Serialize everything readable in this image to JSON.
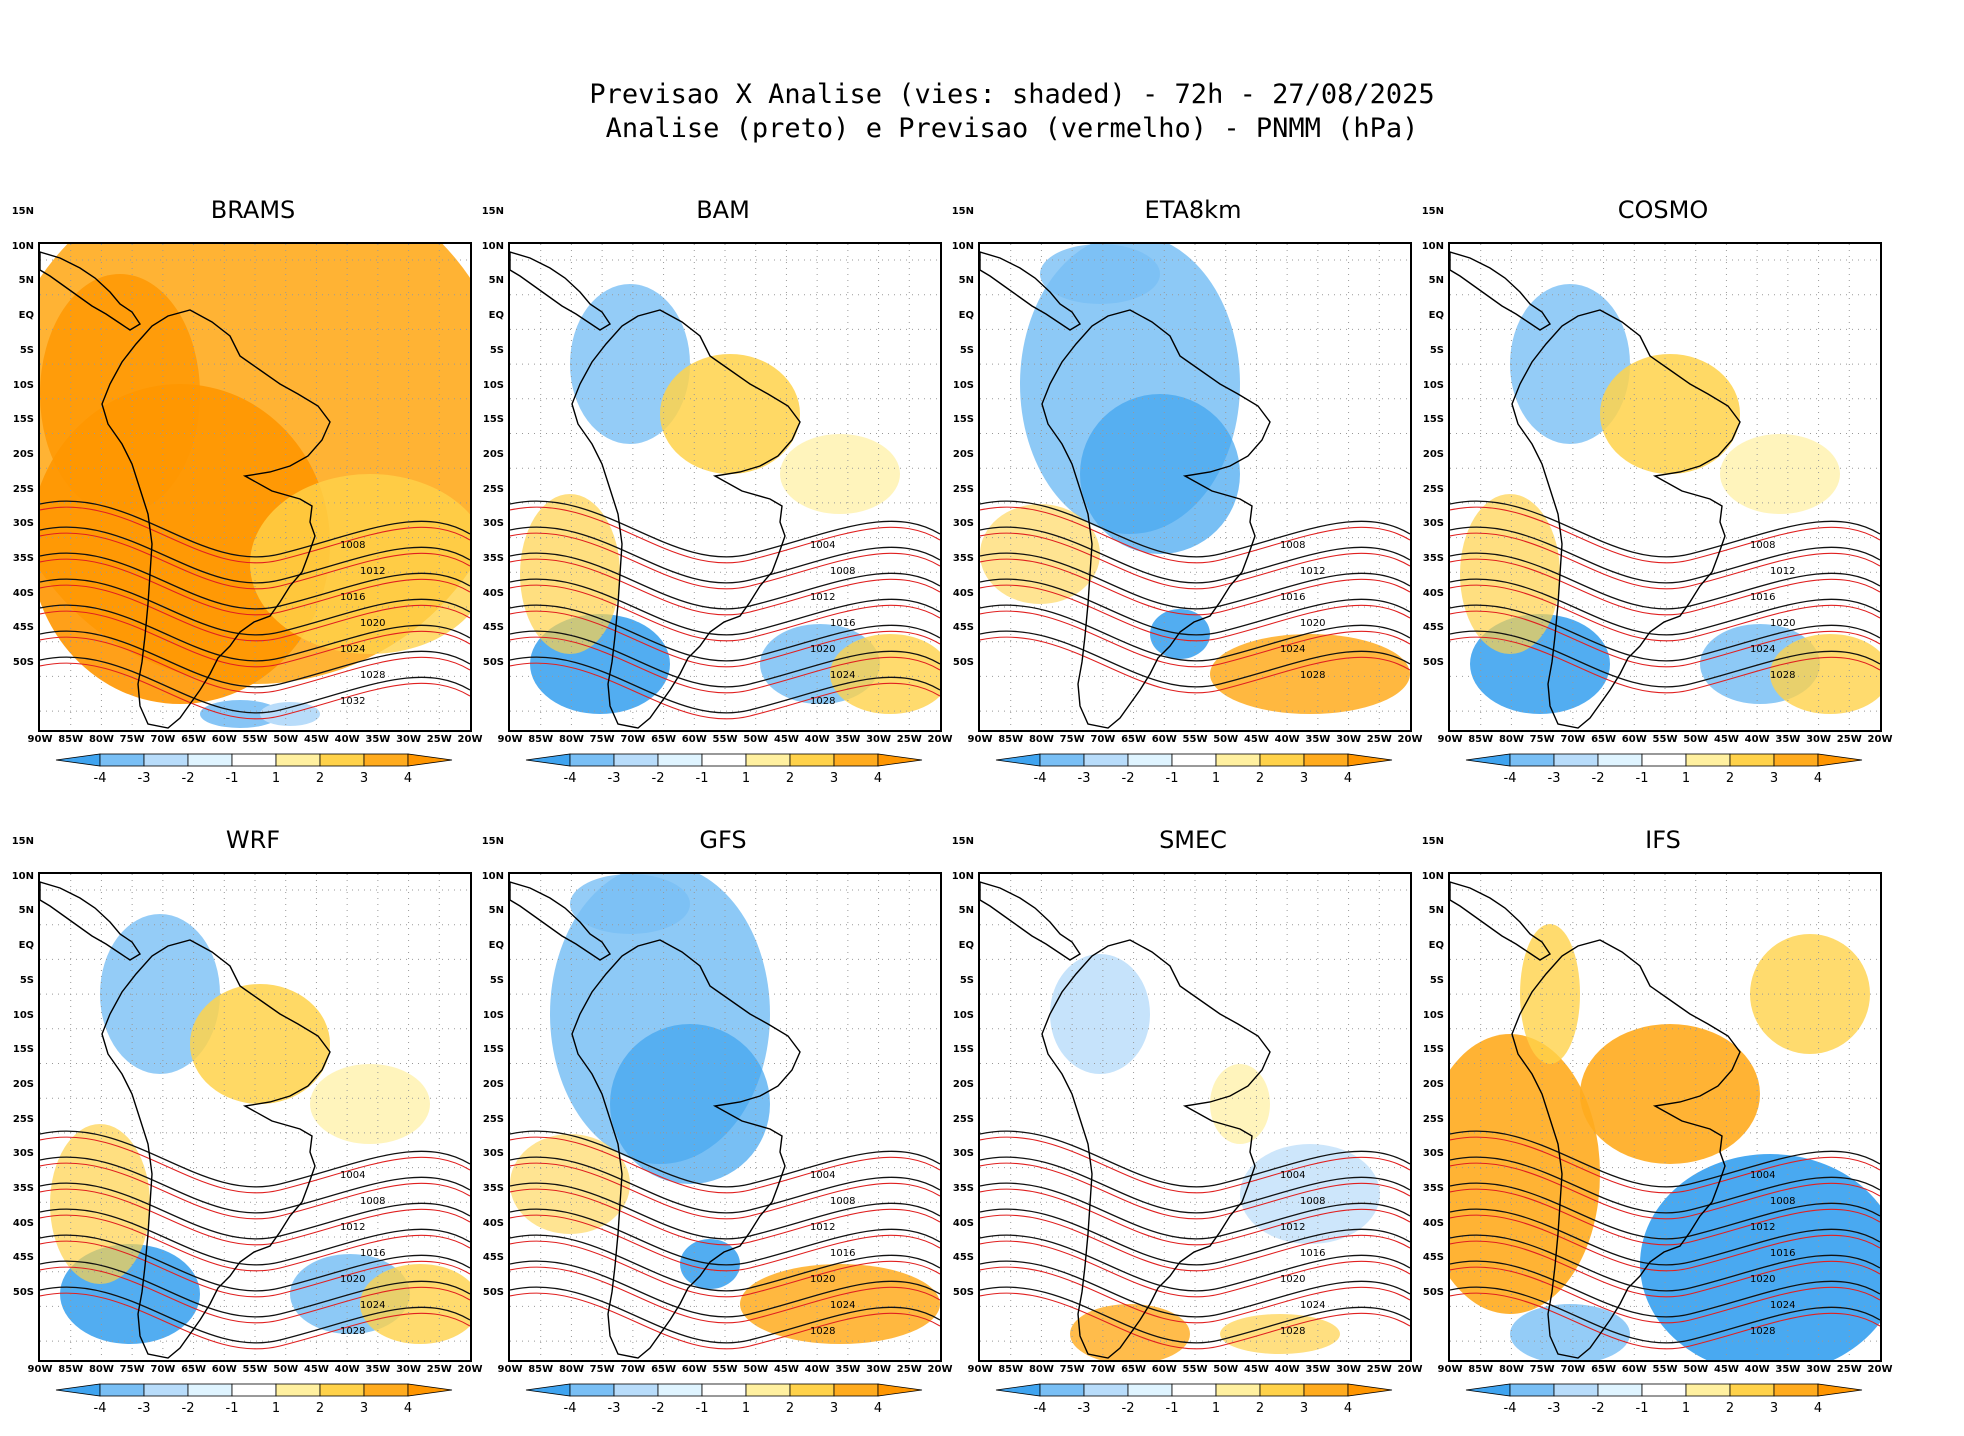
{
  "title": {
    "line1": "Previsao X Analise (vies: shaded) - 72h - 27/08/2025",
    "line2": "Analise (preto) e Previsao (vermelho) - PNMM (hPa)"
  },
  "axes": {
    "lat_labels": [
      "15N",
      "10N",
      "5N",
      "EQ",
      "5S",
      "10S",
      "15S",
      "20S",
      "25S",
      "30S",
      "35S",
      "40S",
      "45S",
      "50S"
    ],
    "lon_labels": [
      "90W",
      "85W",
      "80W",
      "75W",
      "70W",
      "65W",
      "60W",
      "55W",
      "50W",
      "45W",
      "40W",
      "35W",
      "30W",
      "25W",
      "20W"
    ]
  },
  "colorbar": {
    "ticks": [
      "-4",
      "-3",
      "-2",
      "-1",
      "1",
      "2",
      "3",
      "4"
    ],
    "colors": [
      "#3fa4f0",
      "#79bff5",
      "#b8dcfa",
      "#dff4ff",
      "#ffffff",
      "#fff0a0",
      "#ffd24a",
      "#ffab1e",
      "#ff9600"
    ]
  },
  "panels": [
    {
      "name": "BRAMS",
      "bias": "warm",
      "isobars": [
        "1008",
        "1012",
        "1016",
        "1020",
        "1024",
        "1028",
        "1032"
      ]
    },
    {
      "name": "BAM",
      "bias": "mixed",
      "isobars": [
        "1004",
        "1008",
        "1012",
        "1016",
        "1020",
        "1024",
        "1028"
      ]
    },
    {
      "name": "ETA8km",
      "bias": "cool",
      "isobars": [
        "1008",
        "1012",
        "1016",
        "1020",
        "1024",
        "1028"
      ]
    },
    {
      "name": "COSMO",
      "bias": "mixed",
      "isobars": [
        "1008",
        "1012",
        "1016",
        "1020",
        "1024",
        "1028"
      ]
    },
    {
      "name": "WRF",
      "bias": "mixed",
      "isobars": [
        "1004",
        "1008",
        "1012",
        "1016",
        "1020",
        "1024",
        "1028"
      ]
    },
    {
      "name": "GFS",
      "bias": "cool",
      "isobars": [
        "1004",
        "1008",
        "1012",
        "1016",
        "1020",
        "1024",
        "1028"
      ]
    },
    {
      "name": "SMEC",
      "bias": "neutral",
      "isobars": [
        "1004",
        "1008",
        "1012",
        "1016",
        "1020",
        "1024",
        "1028"
      ]
    },
    {
      "name": "IFS",
      "bias": "strong",
      "isobars": [
        "1004",
        "1008",
        "1012",
        "1016",
        "1020",
        "1024",
        "1028"
      ]
    }
  ]
}
